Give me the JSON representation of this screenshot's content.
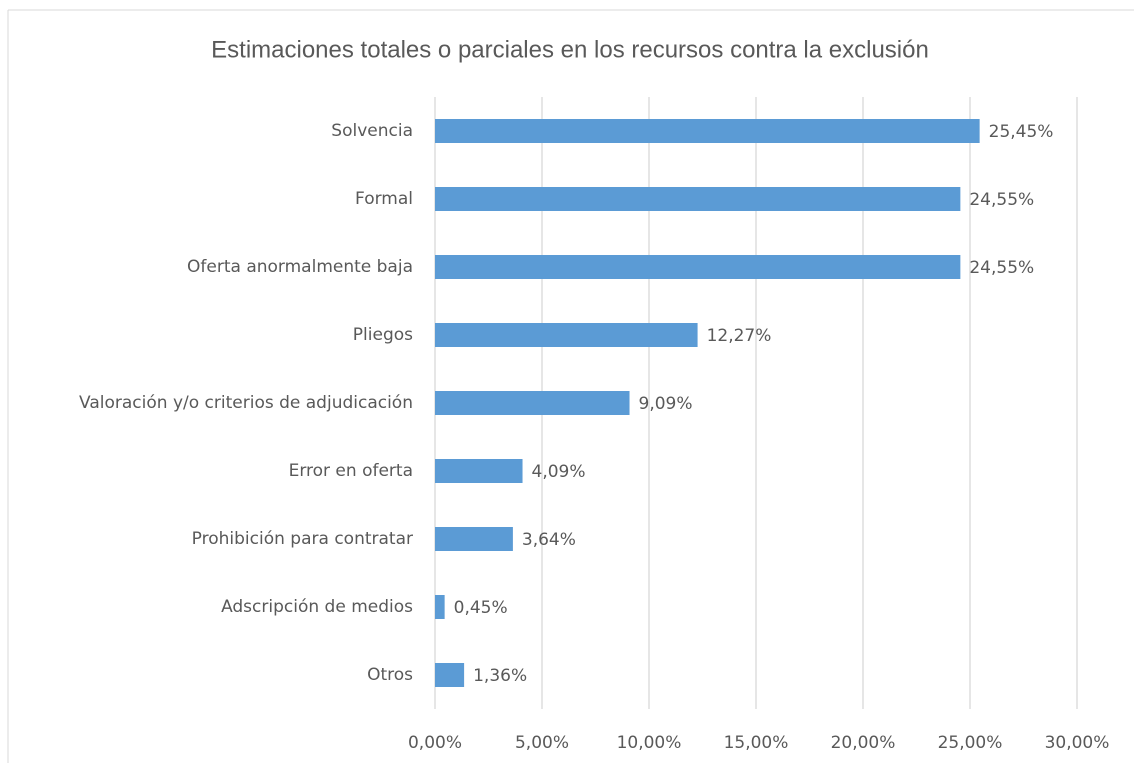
{
  "chart_data": {
    "type": "bar",
    "orientation": "horizontal",
    "title": "Estimaciones totales o parciales en los recursos contra la exclusión",
    "categories": [
      "Solvencia",
      "Formal",
      "Oferta anormalmente baja",
      "Pliegos",
      "Valoración y/o criterios de adjudicación",
      "Error en oferta",
      "Prohibición para contratar",
      "Adscripción de medios",
      "Otros"
    ],
    "values": [
      25.45,
      24.55,
      24.55,
      12.27,
      9.09,
      4.09,
      3.64,
      0.45,
      1.36
    ],
    "value_labels": [
      "25,45%",
      "24,55%",
      "24,55%",
      "12,27%",
      "9,09%",
      "4,09%",
      "3,64%",
      "0,45%",
      "1,36%"
    ],
    "color": "#5b9bd5",
    "xlim": [
      0,
      30
    ],
    "xticks": [
      {
        "value": 0,
        "label": "0,00%"
      },
      {
        "value": 5,
        "label": "5,00%"
      },
      {
        "value": 10,
        "label": "10,00%"
      },
      {
        "value": 15,
        "label": "15,00%"
      },
      {
        "value": 20,
        "label": "20,00%"
      },
      {
        "value": 25,
        "label": "25,00%"
      },
      {
        "value": 30,
        "label": "30,00%"
      }
    ],
    "grid": true
  }
}
